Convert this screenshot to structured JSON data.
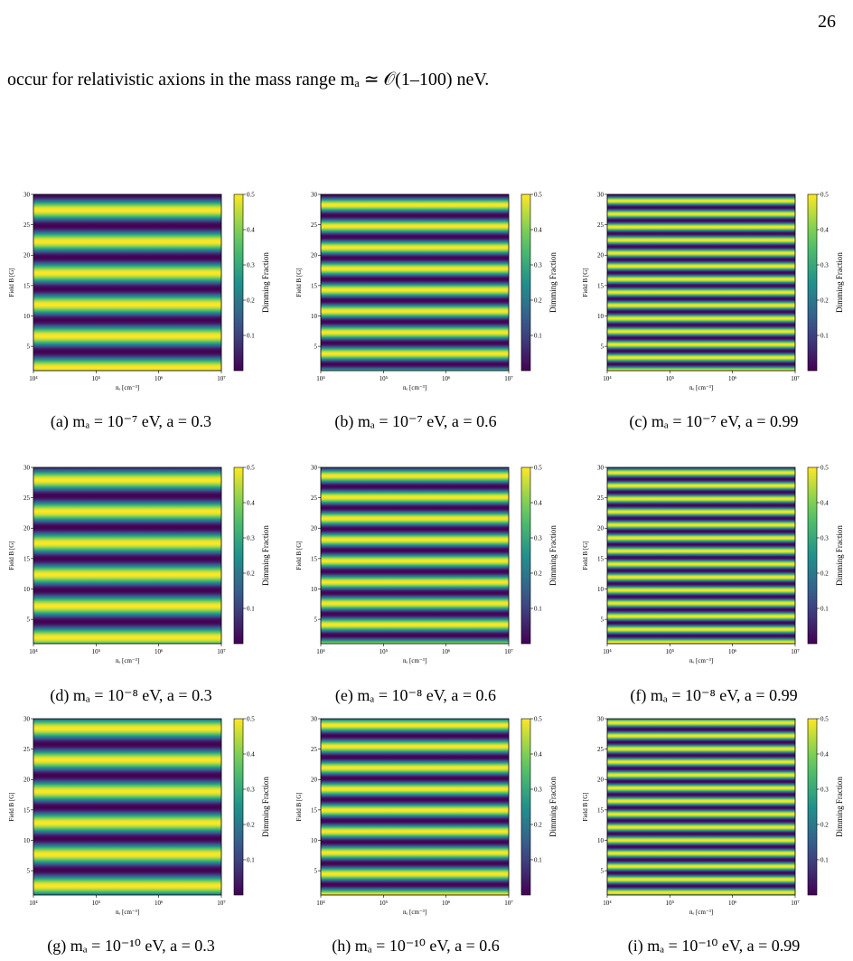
{
  "page_number": "26",
  "body_text": "occur for relativistic axions in the mass range mₐ ≃ 𝒪(1–100) neV.",
  "axes": {
    "y_label": "Field B [G]",
    "x_label": "nₑ [cm⁻³]",
    "colorbar_label": "Dimming Fraction",
    "yticks": [
      "5",
      "10",
      "15",
      "20",
      "25",
      "30"
    ],
    "xticks": [
      "10⁴",
      "10⁵",
      "10⁶",
      "10⁷"
    ],
    "colorbar_ticks": [
      "0.1",
      "0.2",
      "0.3",
      "0.4",
      "0.5"
    ]
  },
  "panels": [
    {
      "caption": "(a) mₐ = 10⁻⁷ eV, a = 0.3"
    },
    {
      "caption": "(b) mₐ = 10⁻⁷ eV, a = 0.6"
    },
    {
      "caption": "(c) mₐ = 10⁻⁷ eV, a = 0.99"
    },
    {
      "caption": "(d) mₐ = 10⁻⁸ eV, a = 0.3"
    },
    {
      "caption": "(e) mₐ = 10⁻⁸ eV, a = 0.6"
    },
    {
      "caption": "(f) mₐ = 10⁻⁸ eV, a = 0.99"
    },
    {
      "caption": "(g) mₐ = 10⁻¹⁰ eV, a = 0.3"
    },
    {
      "caption": "(h) mₐ = 10⁻¹⁰ eV, a = 0.6"
    },
    {
      "caption": "(i) mₐ = 10⁻¹⁰ eV, a = 0.99"
    }
  ]
}
